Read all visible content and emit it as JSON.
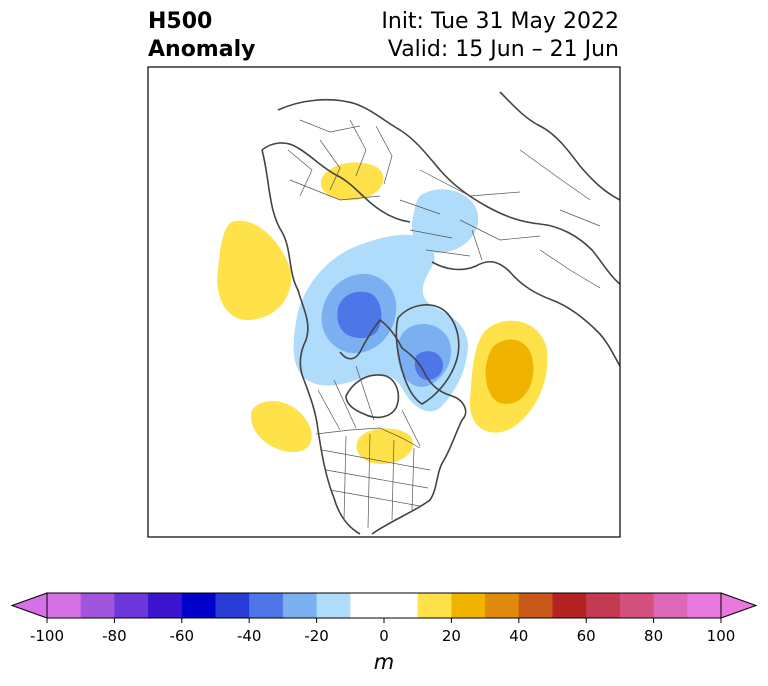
{
  "title": {
    "field": "H500",
    "kind": "Anomaly",
    "init": "Init: Tue 31 May 2022",
    "valid": "Valid: 15 Jun – 21 Jun"
  },
  "colorbar": {
    "unit": "m",
    "ticks": [
      "-100",
      "-80",
      "-60",
      "-40",
      "-20",
      "0",
      "20",
      "40",
      "60",
      "80",
      "100"
    ],
    "colors": [
      "#d670e6",
      "#a055dc",
      "#6b37d8",
      "#3c14d0",
      "#0000c8",
      "#2a3cd8",
      "#4f76e8",
      "#7ab0f2",
      "#aedcfa",
      "#ffffff",
      "#ffffff",
      "#ffe14a",
      "#f0b400",
      "#e08a0c",
      "#c85818",
      "#b42222",
      "#c43a52",
      "#d4507e",
      "#de68b8",
      "#e878dc"
    ],
    "extend_low_color": "#d670e6",
    "extend_high_color": "#e878dc"
  },
  "map": {
    "projection": "north-polar-stereographic",
    "anomalies": [
      {
        "name": "north-pacific-positive",
        "value": 20
      },
      {
        "name": "central-canada-positive",
        "value": 20
      },
      {
        "name": "great-lakes-positive",
        "value": 20
      },
      {
        "name": "north-atlantic-positive",
        "value": 40
      },
      {
        "name": "europe-positive",
        "value": 20
      },
      {
        "name": "arctic-negative",
        "value": -40
      },
      {
        "name": "siberia-negative",
        "value": -20
      },
      {
        "name": "greenland-negative",
        "value": -40
      }
    ]
  }
}
